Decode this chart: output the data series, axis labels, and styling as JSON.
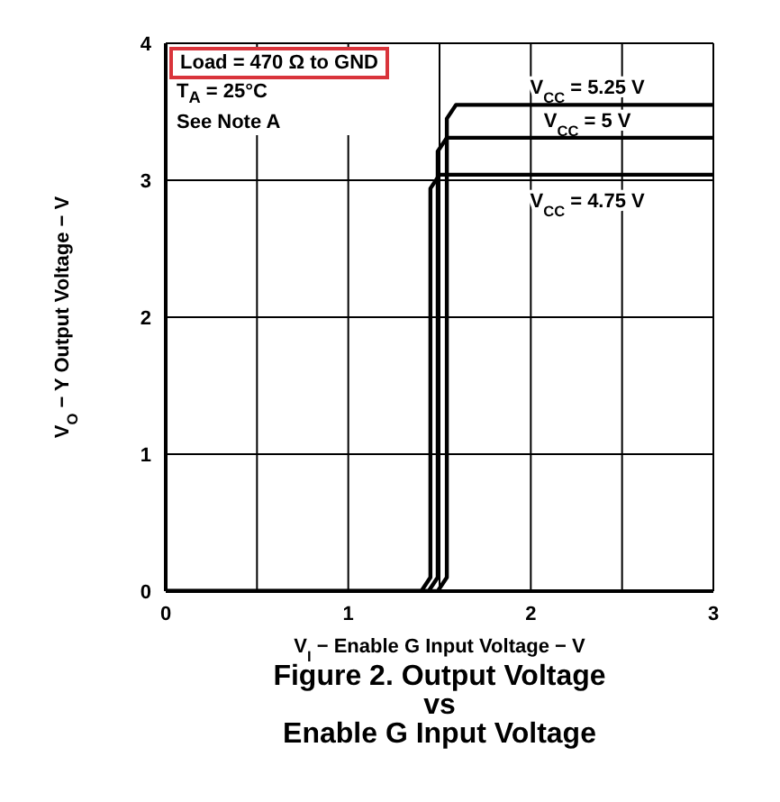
{
  "chart_data": {
    "type": "line",
    "title": "Figure 2. Output Voltage\nvs\nEnable G Input Voltage",
    "xlabel": "V$_{I}$ − Enable G Input Voltage − V",
    "ylabel": "V$_{O}$ − Y Output Voltage − V",
    "annotations": [
      "Load = 470 Ω to GND",
      "T$_{A}$ = 25°C",
      "See Note A"
    ],
    "series": [
      {
        "name": "V$_{CC}$ = 4.75 V",
        "color": "#000000",
        "x": [
          0,
          1.4,
          1.45,
          1.45,
          1.5,
          3
        ],
        "values": [
          0,
          0,
          0.1,
          2.94,
          3.04,
          3.04
        ]
      },
      {
        "name": "V$_{CC}$ = 5 V",
        "color": "#000000",
        "x": [
          0,
          1.44,
          1.49,
          1.49,
          1.54,
          3
        ],
        "values": [
          0,
          0,
          0.1,
          3.21,
          3.31,
          3.31
        ]
      },
      {
        "name": "V$_{CC}$ = 5.25 V",
        "color": "#000000",
        "x": [
          0,
          1.49,
          1.54,
          1.54,
          1.59,
          3
        ],
        "values": [
          0,
          0,
          0.1,
          3.45,
          3.55,
          3.55
        ]
      }
    ],
    "xlim": [
      0,
      3
    ],
    "ylim": [
      0,
      4
    ],
    "xticks": [
      0,
      {
        "value": 0.5,
        "label": null
      },
      1,
      {
        "value": 1.5,
        "label": null
      },
      2,
      {
        "value": 2.5,
        "label": null
      },
      3
    ],
    "yticks": [
      0,
      1,
      2,
      3,
      4
    ],
    "grid": true,
    "legend": false,
    "marker": "none",
    "line_style": "solid"
  }
}
